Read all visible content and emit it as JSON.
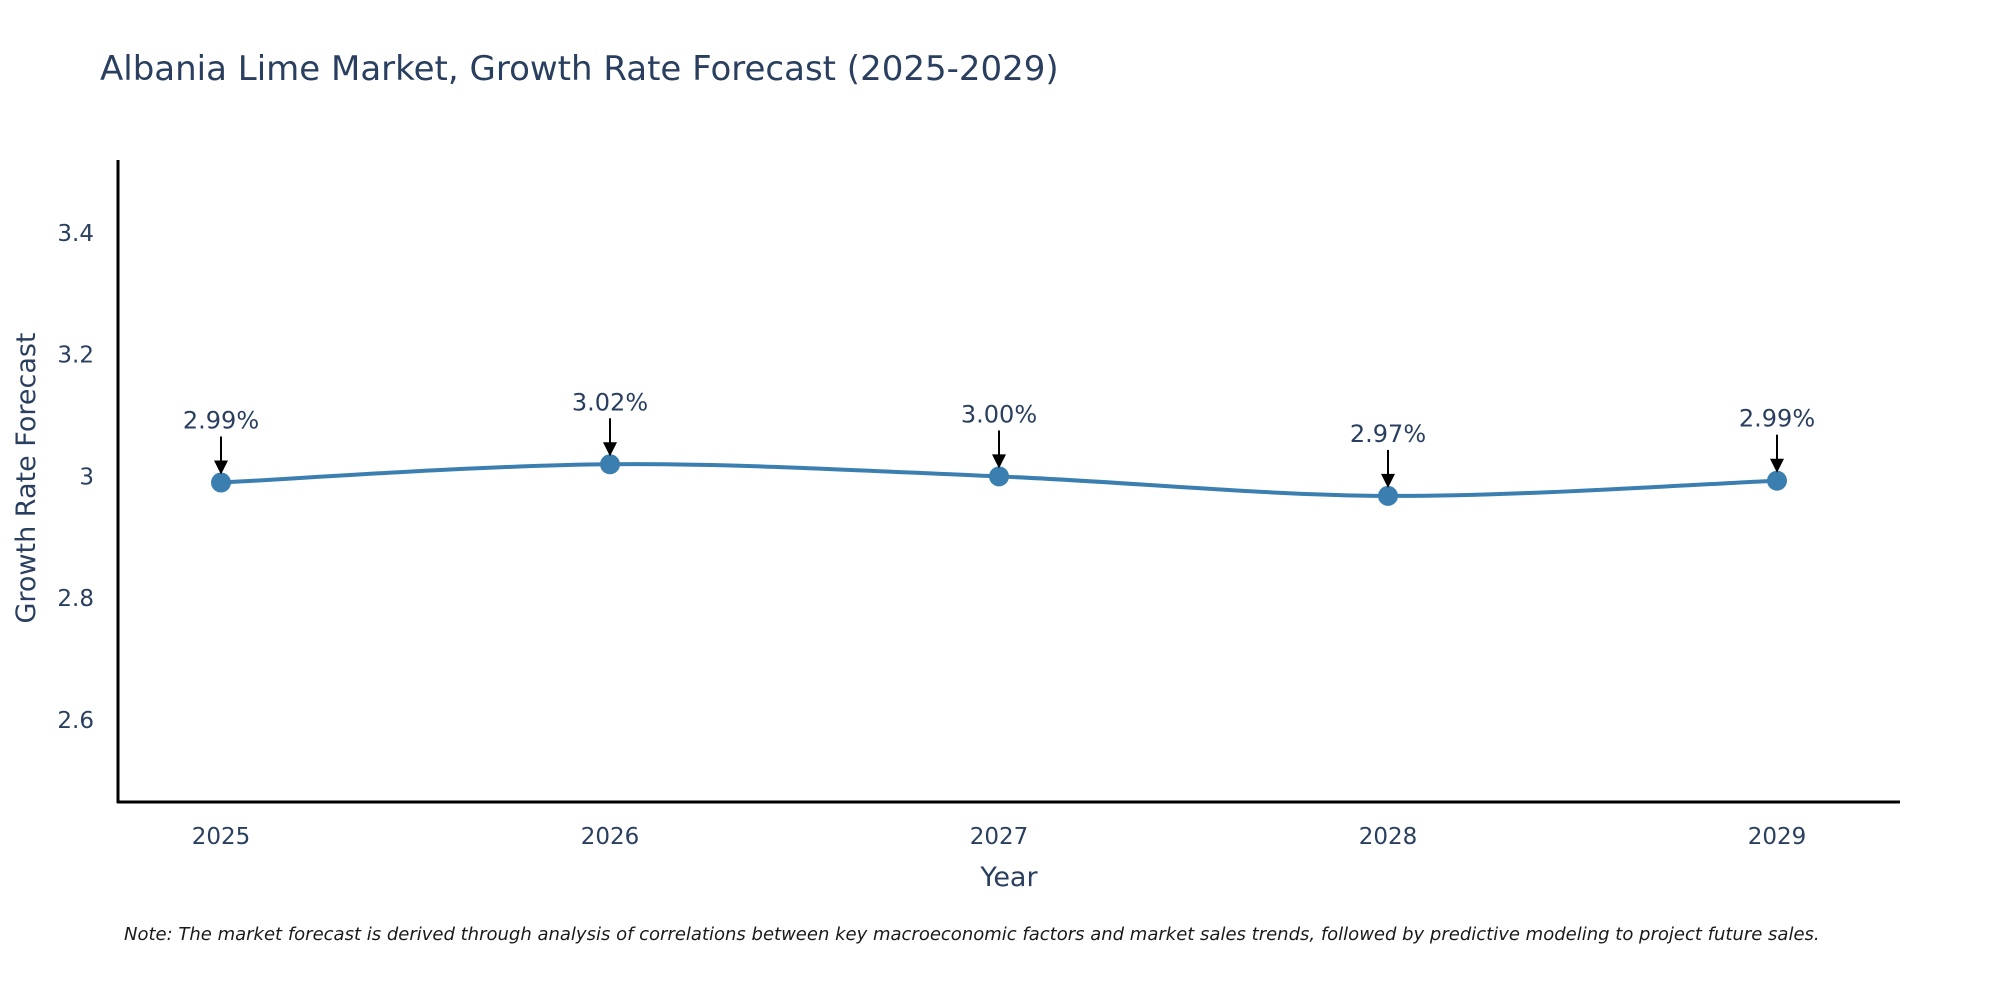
{
  "chart_data": {
    "type": "line",
    "title": "Albania Lime Market, Growth Rate Forecast (2025-2029)",
    "xlabel": "Year",
    "ylabel": "Growth Rate Forecast",
    "categories": [
      "2025",
      "2026",
      "2027",
      "2028",
      "2029"
    ],
    "series": [
      {
        "name": "Growth Rate Forecast",
        "values": [
          2.99,
          3.02,
          3.0,
          2.968,
          2.993
        ],
        "labels": [
          "2.99%",
          "3.02%",
          "3.00%",
          "2.97%",
          "2.99%"
        ]
      }
    ],
    "ylim": [
      2.465,
      3.52
    ],
    "yticks": [
      2.6,
      2.8,
      3.0,
      3.2,
      3.4
    ],
    "ytick_labels": [
      "2.6",
      "2.8",
      "3",
      "3.2",
      "3.4"
    ],
    "grid": false,
    "line_color": "#3a7fb0",
    "marker_color": "#3a7fb0",
    "note": "Note: The market forecast is derived through analysis of correlations between key macroeconomic factors and market sales trends, followed by predictive modeling to project future sales."
  }
}
